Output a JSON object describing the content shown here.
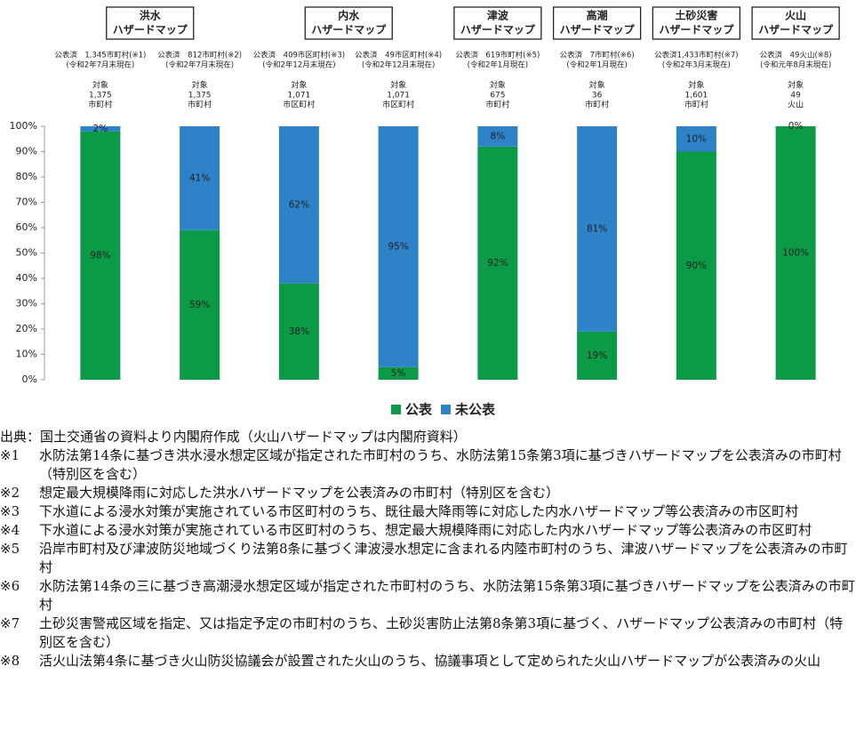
{
  "chart_data": {
    "type": "stacked_bar",
    "groups": [
      {
        "label": [
          "洪水",
          "ハザードマップ"
        ]
      },
      {
        "label": [
          "内水",
          "ハザードマップ"
        ]
      },
      {
        "label": [
          "津波",
          "ハザードマップ"
        ]
      },
      {
        "label": [
          "高潮",
          "ハザードマップ"
        ]
      },
      {
        "label": [
          "土砂災害",
          "ハザードマップ"
        ]
      },
      {
        "label": [
          "火山",
          "ハザードマップ"
        ]
      }
    ],
    "annotations": [
      {
        "published": [
          "公表済　1,345市町村(※1)",
          "(令和2年7月末現在)"
        ],
        "target": [
          "対象",
          "1,375",
          "市町村"
        ]
      },
      {
        "published": [
          "公表済　812市町村(※2)",
          "(令和2年7月末現在)"
        ],
        "target": [
          "対象",
          "1,375",
          "市町村"
        ]
      },
      {
        "published": [
          "公表済　409市区町村(※3)",
          "(令和2年12月末現在)"
        ],
        "target": [
          "対象",
          "1,071",
          "市区町村"
        ]
      },
      {
        "published": [
          "公表済　49市区町村(※4)",
          "(令和2年12月末現在)"
        ],
        "target": [
          "対象",
          "1,071",
          "市区町村"
        ]
      },
      {
        "published": [
          "公表済　619市町村(※5)",
          "(令和2年1月現在)"
        ],
        "target": [
          "対象",
          "675",
          "市町村"
        ]
      },
      {
        "published": [
          "公表済　7市町村(※6)",
          "(令和2年1月現在)"
        ],
        "target": [
          "対象",
          "36",
          "市町村"
        ]
      },
      {
        "published": [
          "公表済1,433市町村(※7)",
          "(令和2年3月末現在)"
        ],
        "target": [
          "対象",
          "1,601",
          "市町村"
        ]
      },
      {
        "published": [
          "公表済　49火山(※8)",
          "(令和元年8月末現在)"
        ],
        "target": [
          "対象",
          "49",
          "火山"
        ]
      }
    ],
    "series": [
      {
        "name": "公表",
        "color": "#0b9a45",
        "values": [
          98,
          59,
          38,
          5,
          92,
          19,
          90,
          100
        ],
        "value_labels": [
          "98%",
          "59%",
          "38%",
          "5%",
          "92%",
          "19%",
          "90%",
          "100%"
        ]
      },
      {
        "name": "未公表",
        "color": "#2e82c8",
        "values": [
          2,
          41,
          62,
          95,
          8,
          81,
          10,
          0
        ],
        "value_labels": [
          "2%",
          "41%",
          "62%",
          "95%",
          "8%",
          "81%",
          "10%",
          "0%"
        ]
      }
    ],
    "ylim": [
      0,
      100
    ],
    "yticks": [
      {
        "value": 0,
        "label": "0%"
      },
      {
        "value": 10,
        "label": "10%"
      },
      {
        "value": 20,
        "label": "20%"
      },
      {
        "value": 30,
        "label": "30%"
      },
      {
        "value": 40,
        "label": "40%"
      },
      {
        "value": 50,
        "label": "50%"
      },
      {
        "value": 60,
        "label": "60%"
      },
      {
        "value": 70,
        "label": "70%"
      },
      {
        "value": 80,
        "label": "80%"
      },
      {
        "value": 90,
        "label": "90%"
      },
      {
        "value": 100,
        "label": "100%"
      }
    ],
    "grid": false
  },
  "source": "出典：国土交通省の資料より内閣府作成（火山ハザードマップは内閣府資料）",
  "notes": [
    {
      "mark": "※1",
      "text": "水防法第14条に基づき洪水浸水想定区域が指定された市町村のうち、水防法第15条第3項に基づきハザードマップを公表済みの市町村（特別区を含む）"
    },
    {
      "mark": "※2",
      "text": "想定最大規模降雨に対応した洪水ハザードマップを公表済みの市町村（特別区を含む）"
    },
    {
      "mark": "※3",
      "text": "下水道による浸水対策が実施されている市区町村のうち、既往最大降雨等に対応した内水ハザードマップ等公表済みの市区町村"
    },
    {
      "mark": "※4",
      "text": "下水道による浸水対策が実施されている市区町村のうち、想定最大規模降雨に対応した内水ハザードマップ等公表済みの市区町村"
    },
    {
      "mark": "※5",
      "text": "沿岸市町村及び津波防災地域づくり法第8条に基づく津波浸水想定に含まれる内陸市町村のうち、津波ハザードマップを公表済みの市町村"
    },
    {
      "mark": "※6",
      "text": "水防法第14条の三に基づき高潮浸水想定区域が指定された市町村のうち、水防法第15条第3項に基づきハザードマップを公表済みの市町村"
    },
    {
      "mark": "※7",
      "text": "土砂災害警戒区域を指定、又は指定予定の市町村のうち、土砂災害防止法第8条第3項に基づく、ハザードマップ公表済みの市町村（特別区を含む）"
    },
    {
      "mark": "※8",
      "text": "活火山法第4条に基づき火山防災協議会が設置された火山のうち、協議事項として定められた火山ハザードマップが公表済みの火山"
    }
  ]
}
